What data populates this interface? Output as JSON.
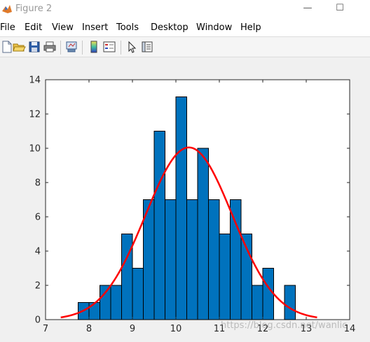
{
  "window": {
    "title": "Figure 2",
    "minimize_glyph": "—",
    "maximize_glyph": "☐"
  },
  "menu": [
    "File",
    "Edit",
    "View",
    "Insert",
    "Tools",
    "Desktop",
    "Window",
    "Help"
  ],
  "toolbar": {
    "icons": [
      "new-figure-icon",
      "open-file-icon",
      "save-icon",
      "print-icon",
      "link-plot-icon",
      "colorbar-icon",
      "legend-icon",
      "edit-plot-arrow-icon",
      "property-inspector-icon"
    ]
  },
  "colors": {
    "bar_fill": "#0072bd",
    "curve": "#ff0000"
  },
  "chart_data": {
    "type": "bar",
    "title": "",
    "xlabel": "",
    "ylabel": "",
    "xlim": [
      7,
      14
    ],
    "ylim": [
      0,
      14
    ],
    "xticks": [
      "7",
      "8",
      "9",
      "10",
      "11",
      "12",
      "13",
      "14"
    ],
    "yticks": [
      "0",
      "2",
      "4",
      "6",
      "8",
      "10",
      "12",
      "14"
    ],
    "grid": false,
    "bin_width": 0.25,
    "bin_start": 7.75,
    "values": [
      1,
      1,
      2,
      2,
      5,
      3,
      7,
      11,
      7,
      13,
      7,
      10,
      7,
      5,
      7,
      5,
      2,
      3,
      0,
      2
    ],
    "fit_curve": {
      "type": "normal-pdf-scaled",
      "peak_x": 10.3,
      "peak_y": 10.05,
      "x_range": [
        7.35,
        13.25
      ],
      "sigma": 1.0
    }
  },
  "watermark": "https://blog.csdn.net/wanlic"
}
